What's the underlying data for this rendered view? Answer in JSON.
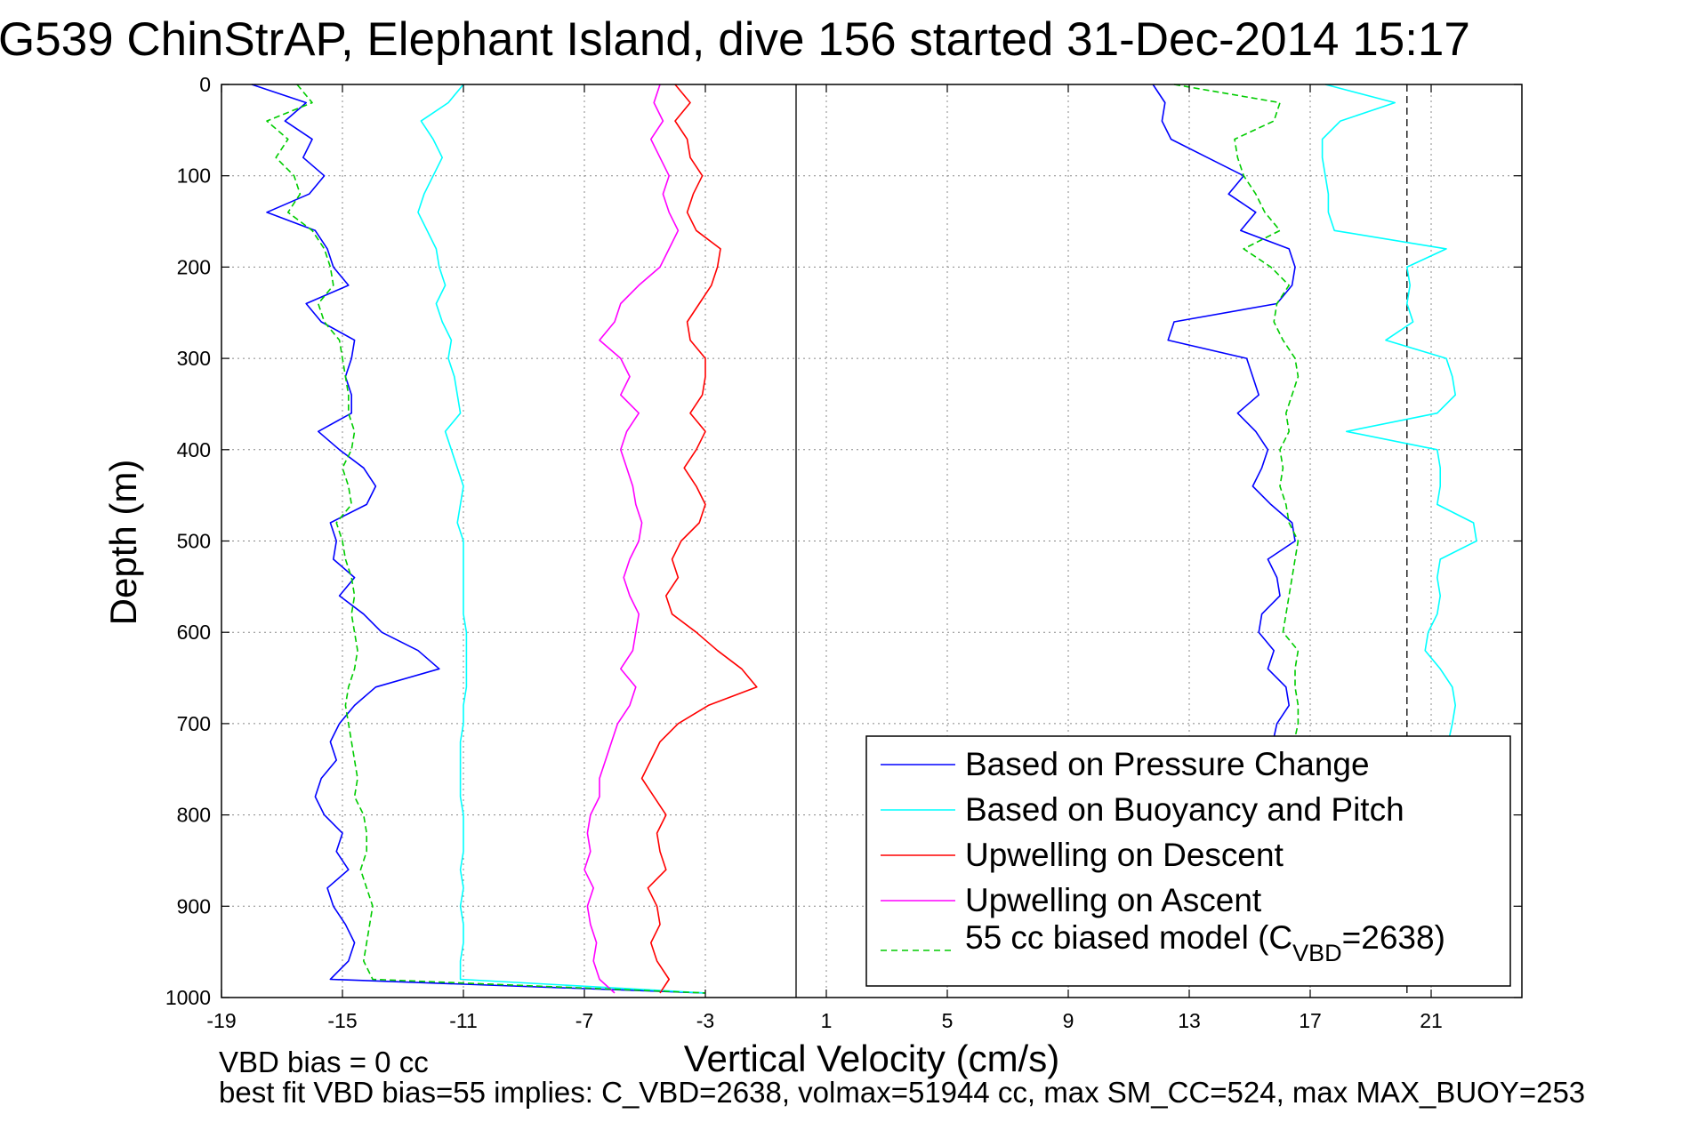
{
  "chart_data": {
    "type": "line",
    "title": "G539 ChinStrAP, Elephant Island, dive 156 started 31-Dec-2014 15:17",
    "xlabel": "Vertical Velocity (cm/s)",
    "ylabel": "Depth (m)",
    "xlim": [
      -19,
      24
    ],
    "ylim": [
      1000,
      0
    ],
    "y_reversed": true,
    "grid": true,
    "xticks": [
      -19,
      -15,
      -11,
      -7,
      -3,
      1,
      5,
      9,
      13,
      17,
      21
    ],
    "xtick_labels": [
      "-19",
      "-15",
      "-11",
      "-7",
      "-3",
      "1",
      "5",
      "9",
      "13",
      "17",
      "21"
    ],
    "yticks": [
      0,
      100,
      200,
      300,
      400,
      500,
      600,
      700,
      800,
      900,
      1000
    ],
    "ytick_labels": [
      "0",
      "100",
      "200",
      "300",
      "400",
      "500",
      "600",
      "700",
      "800",
      "900",
      "1000"
    ],
    "reference_lines": [
      {
        "x": 0,
        "style": "solid"
      },
      {
        "x": 20.2,
        "style": "dashed"
      }
    ],
    "legend_position": "bottom-right",
    "series": [
      {
        "name": "Based on Pressure Change",
        "color": "#0000ff",
        "dash": "solid",
        "descent": {
          "depth": [
            0,
            20,
            40,
            60,
            80,
            100,
            120,
            140,
            160,
            180,
            200,
            220,
            240,
            260,
            280,
            300,
            320,
            340,
            360,
            380,
            400,
            420,
            440,
            460,
            480,
            500,
            520,
            540,
            560,
            580,
            600,
            620,
            640,
            660,
            680,
            700,
            720,
            740,
            760,
            780,
            800,
            820,
            840,
            860,
            880,
            900,
            920,
            940,
            960,
            980,
            995
          ],
          "velocity": [
            -18.0,
            -16.2,
            -16.9,
            -16.0,
            -16.3,
            -15.6,
            -16.1,
            -17.5,
            -15.9,
            -15.5,
            -15.3,
            -14.8,
            -16.2,
            -15.7,
            -14.6,
            -14.7,
            -14.9,
            -14.7,
            -14.7,
            -15.8,
            -15.1,
            -14.3,
            -13.9,
            -14.2,
            -15.4,
            -15.2,
            -15.3,
            -14.6,
            -15.1,
            -14.3,
            -13.7,
            -12.5,
            -11.8,
            -13.9,
            -14.6,
            -15.1,
            -15.4,
            -15.2,
            -15.7,
            -15.9,
            -15.6,
            -15.0,
            -15.2,
            -14.8,
            -15.5,
            -15.3,
            -14.9,
            -14.6,
            -14.8,
            -15.4,
            -3.0
          ]
        },
        "ascent": {
          "depth": [
            0,
            20,
            40,
            60,
            80,
            100,
            120,
            140,
            160,
            180,
            200,
            220,
            240,
            260,
            280,
            300,
            320,
            340,
            360,
            380,
            400,
            420,
            440,
            460,
            480,
            500,
            520,
            540,
            560,
            580,
            600,
            620,
            640,
            660,
            680,
            700,
            715
          ],
          "velocity": [
            11.8,
            12.2,
            12.1,
            12.4,
            13.6,
            14.8,
            14.3,
            15.2,
            14.7,
            16.3,
            16.5,
            16.4,
            15.9,
            12.5,
            12.3,
            14.9,
            15.1,
            15.3,
            14.6,
            15.2,
            15.6,
            15.4,
            15.1,
            15.7,
            16.4,
            16.5,
            15.6,
            15.9,
            16.0,
            15.4,
            15.3,
            15.8,
            15.6,
            16.2,
            16.3,
            15.9,
            15.8
          ]
        }
      },
      {
        "name": "Based on Buoyancy and Pitch",
        "color": "#00ffff",
        "dash": "solid",
        "descent": {
          "depth": [
            0,
            20,
            40,
            60,
            80,
            100,
            120,
            140,
            160,
            180,
            200,
            220,
            240,
            260,
            280,
            300,
            320,
            340,
            360,
            380,
            400,
            420,
            440,
            460,
            480,
            500,
            520,
            540,
            560,
            580,
            600,
            620,
            640,
            660,
            680,
            700,
            720,
            740,
            760,
            780,
            800,
            820,
            840,
            860,
            880,
            900,
            920,
            940,
            960,
            980,
            995
          ],
          "velocity": [
            -11.0,
            -11.5,
            -12.4,
            -12.0,
            -11.7,
            -12.0,
            -12.3,
            -12.5,
            -12.2,
            -11.9,
            -11.8,
            -11.6,
            -11.9,
            -11.7,
            -11.4,
            -11.5,
            -11.3,
            -11.2,
            -11.1,
            -11.6,
            -11.4,
            -11.2,
            -11.0,
            -11.1,
            -11.2,
            -11.0,
            -11.0,
            -11.0,
            -11.0,
            -11.0,
            -10.9,
            -10.9,
            -10.9,
            -10.9,
            -11.0,
            -11.0,
            -11.1,
            -11.1,
            -11.1,
            -11.1,
            -11.0,
            -11.0,
            -11.0,
            -11.1,
            -11.0,
            -11.1,
            -11.0,
            -11.0,
            -11.1,
            -11.1,
            -3.0
          ]
        },
        "ascent": {
          "depth": [
            0,
            20,
            40,
            60,
            80,
            100,
            120,
            140,
            160,
            180,
            200,
            220,
            240,
            260,
            280,
            300,
            320,
            340,
            360,
            380,
            400,
            420,
            440,
            460,
            480,
            500,
            520,
            540,
            560,
            580,
            600,
            620,
            640,
            660,
            680,
            700,
            715
          ],
          "velocity": [
            17.5,
            19.8,
            18.0,
            17.4,
            17.4,
            17.5,
            17.6,
            17.6,
            17.8,
            21.5,
            20.2,
            20.3,
            20.2,
            20.4,
            19.5,
            21.5,
            21.7,
            21.8,
            21.2,
            18.2,
            21.2,
            21.3,
            21.3,
            21.2,
            22.4,
            22.5,
            21.3,
            21.2,
            21.3,
            21.2,
            20.9,
            20.8,
            21.3,
            21.7,
            21.8,
            21.7,
            21.6
          ]
        }
      },
      {
        "name": "Upwelling on Descent",
        "color": "#ff0000",
        "dash": "solid",
        "depth": [
          0,
          20,
          40,
          60,
          80,
          100,
          120,
          140,
          160,
          180,
          200,
          220,
          240,
          260,
          280,
          300,
          320,
          340,
          360,
          380,
          400,
          420,
          440,
          460,
          480,
          500,
          520,
          540,
          560,
          580,
          600,
          620,
          640,
          660,
          680,
          700,
          720,
          740,
          760,
          780,
          800,
          820,
          840,
          860,
          880,
          900,
          920,
          940,
          960,
          980,
          995
        ],
        "velocity": [
          -4.0,
          -3.5,
          -4.0,
          -3.6,
          -3.5,
          -3.1,
          -3.4,
          -3.6,
          -3.3,
          -2.5,
          -2.6,
          -2.8,
          -3.2,
          -3.6,
          -3.5,
          -3.0,
          -3.0,
          -3.1,
          -3.5,
          -3.0,
          -3.3,
          -3.7,
          -3.3,
          -3.0,
          -3.2,
          -3.8,
          -4.1,
          -3.9,
          -4.3,
          -4.1,
          -3.3,
          -2.6,
          -1.8,
          -1.3,
          -2.9,
          -3.9,
          -4.5,
          -4.8,
          -5.1,
          -4.7,
          -4.3,
          -4.6,
          -4.5,
          -4.3,
          -4.9,
          -4.6,
          -4.5,
          -4.8,
          -4.6,
          -4.2,
          -4.5
        ]
      },
      {
        "name": "Upwelling on Ascent",
        "color": "#ff00ff",
        "dash": "solid",
        "depth": [
          0,
          20,
          40,
          60,
          80,
          100,
          120,
          140,
          160,
          180,
          200,
          220,
          240,
          260,
          280,
          300,
          320,
          340,
          360,
          380,
          400,
          420,
          440,
          460,
          480,
          500,
          520,
          540,
          560,
          580,
          600,
          620,
          640,
          660,
          680,
          700,
          720,
          740,
          760,
          780,
          800,
          820,
          840,
          860,
          880,
          900,
          920,
          940,
          960,
          980,
          995
        ],
        "velocity": [
          -4.5,
          -4.7,
          -4.4,
          -4.8,
          -4.5,
          -4.2,
          -4.4,
          -4.2,
          -3.9,
          -4.2,
          -4.5,
          -5.2,
          -5.8,
          -6.0,
          -6.5,
          -5.8,
          -5.5,
          -5.8,
          -5.2,
          -5.6,
          -5.8,
          -5.6,
          -5.4,
          -5.3,
          -5.1,
          -5.2,
          -5.5,
          -5.7,
          -5.5,
          -5.2,
          -5.3,
          -5.4,
          -5.8,
          -5.3,
          -5.5,
          -5.9,
          -6.1,
          -6.3,
          -6.5,
          -6.5,
          -6.8,
          -6.9,
          -6.8,
          -7.0,
          -6.7,
          -6.9,
          -6.8,
          -6.6,
          -6.7,
          -6.5,
          -6.0
        ]
      },
      {
        "name": "55 cc biased model (C_VBD=2638)",
        "color": "#00cc00",
        "dash": "dashed",
        "descent": {
          "depth": [
            0,
            20,
            40,
            60,
            80,
            100,
            120,
            140,
            160,
            180,
            200,
            220,
            240,
            260,
            280,
            300,
            320,
            340,
            360,
            380,
            400,
            420,
            440,
            460,
            480,
            500,
            520,
            540,
            560,
            580,
            600,
            620,
            640,
            660,
            680,
            700,
            720,
            740,
            760,
            780,
            800,
            820,
            840,
            860,
            880,
            900,
            920,
            940,
            960,
            980,
            995
          ],
          "velocity": [
            -16.5,
            -16.0,
            -17.5,
            -16.8,
            -17.2,
            -16.6,
            -16.4,
            -16.8,
            -16.0,
            -15.6,
            -15.4,
            -15.3,
            -15.8,
            -15.6,
            -15.1,
            -15.0,
            -14.9,
            -14.8,
            -14.8,
            -14.6,
            -14.7,
            -15.0,
            -14.8,
            -14.7,
            -15.2,
            -15.0,
            -14.9,
            -14.7,
            -14.6,
            -14.7,
            -14.6,
            -14.5,
            -14.6,
            -14.8,
            -14.9,
            -14.8,
            -14.7,
            -14.6,
            -14.5,
            -14.6,
            -14.3,
            -14.2,
            -14.2,
            -14.4,
            -14.2,
            -14.0,
            -14.1,
            -14.2,
            -14.3,
            -14.0,
            -3.0
          ]
        },
        "ascent": {
          "depth": [
            0,
            20,
            40,
            60,
            80,
            100,
            120,
            140,
            160,
            180,
            200,
            220,
            240,
            260,
            280,
            300,
            320,
            340,
            360,
            380,
            400,
            420,
            440,
            460,
            480,
            500,
            520,
            540,
            560,
            580,
            600,
            620,
            640,
            660,
            680,
            700,
            715
          ],
          "velocity": [
            12.5,
            16.0,
            15.8,
            14.5,
            14.6,
            14.8,
            15.2,
            15.5,
            16.0,
            14.8,
            15.7,
            16.3,
            15.9,
            15.8,
            16.1,
            16.5,
            16.6,
            16.4,
            16.2,
            16.3,
            16.0,
            16.1,
            16.0,
            16.2,
            16.3,
            16.6,
            16.5,
            16.4,
            16.3,
            16.2,
            16.1,
            16.6,
            16.5,
            16.5,
            16.6,
            16.6,
            16.5
          ]
        }
      }
    ]
  },
  "legend": {
    "items": [
      {
        "label": "Based on Pressure Change",
        "color": "#0000ff",
        "dash": ""
      },
      {
        "label": "Based on Buoyancy and Pitch",
        "color": "#00ffff",
        "dash": ""
      },
      {
        "label": "Upwelling on Descent",
        "color": "#ff0000",
        "dash": ""
      },
      {
        "label": "Upwelling on Ascent",
        "color": "#ff00ff",
        "dash": ""
      }
    ],
    "model_label_prefix": "55 cc biased model (C",
    "model_label_subscript": "VBD",
    "model_label_suffix": "=2638)",
    "model_color": "#00cc00"
  },
  "footer": {
    "line1": "VBD bias = 0 cc",
    "line2": "best fit VBD bias=55 implies: C_VBD=2638, volmax=51944 cc, max SM_CC=524, max MAX_BUOY=253"
  }
}
